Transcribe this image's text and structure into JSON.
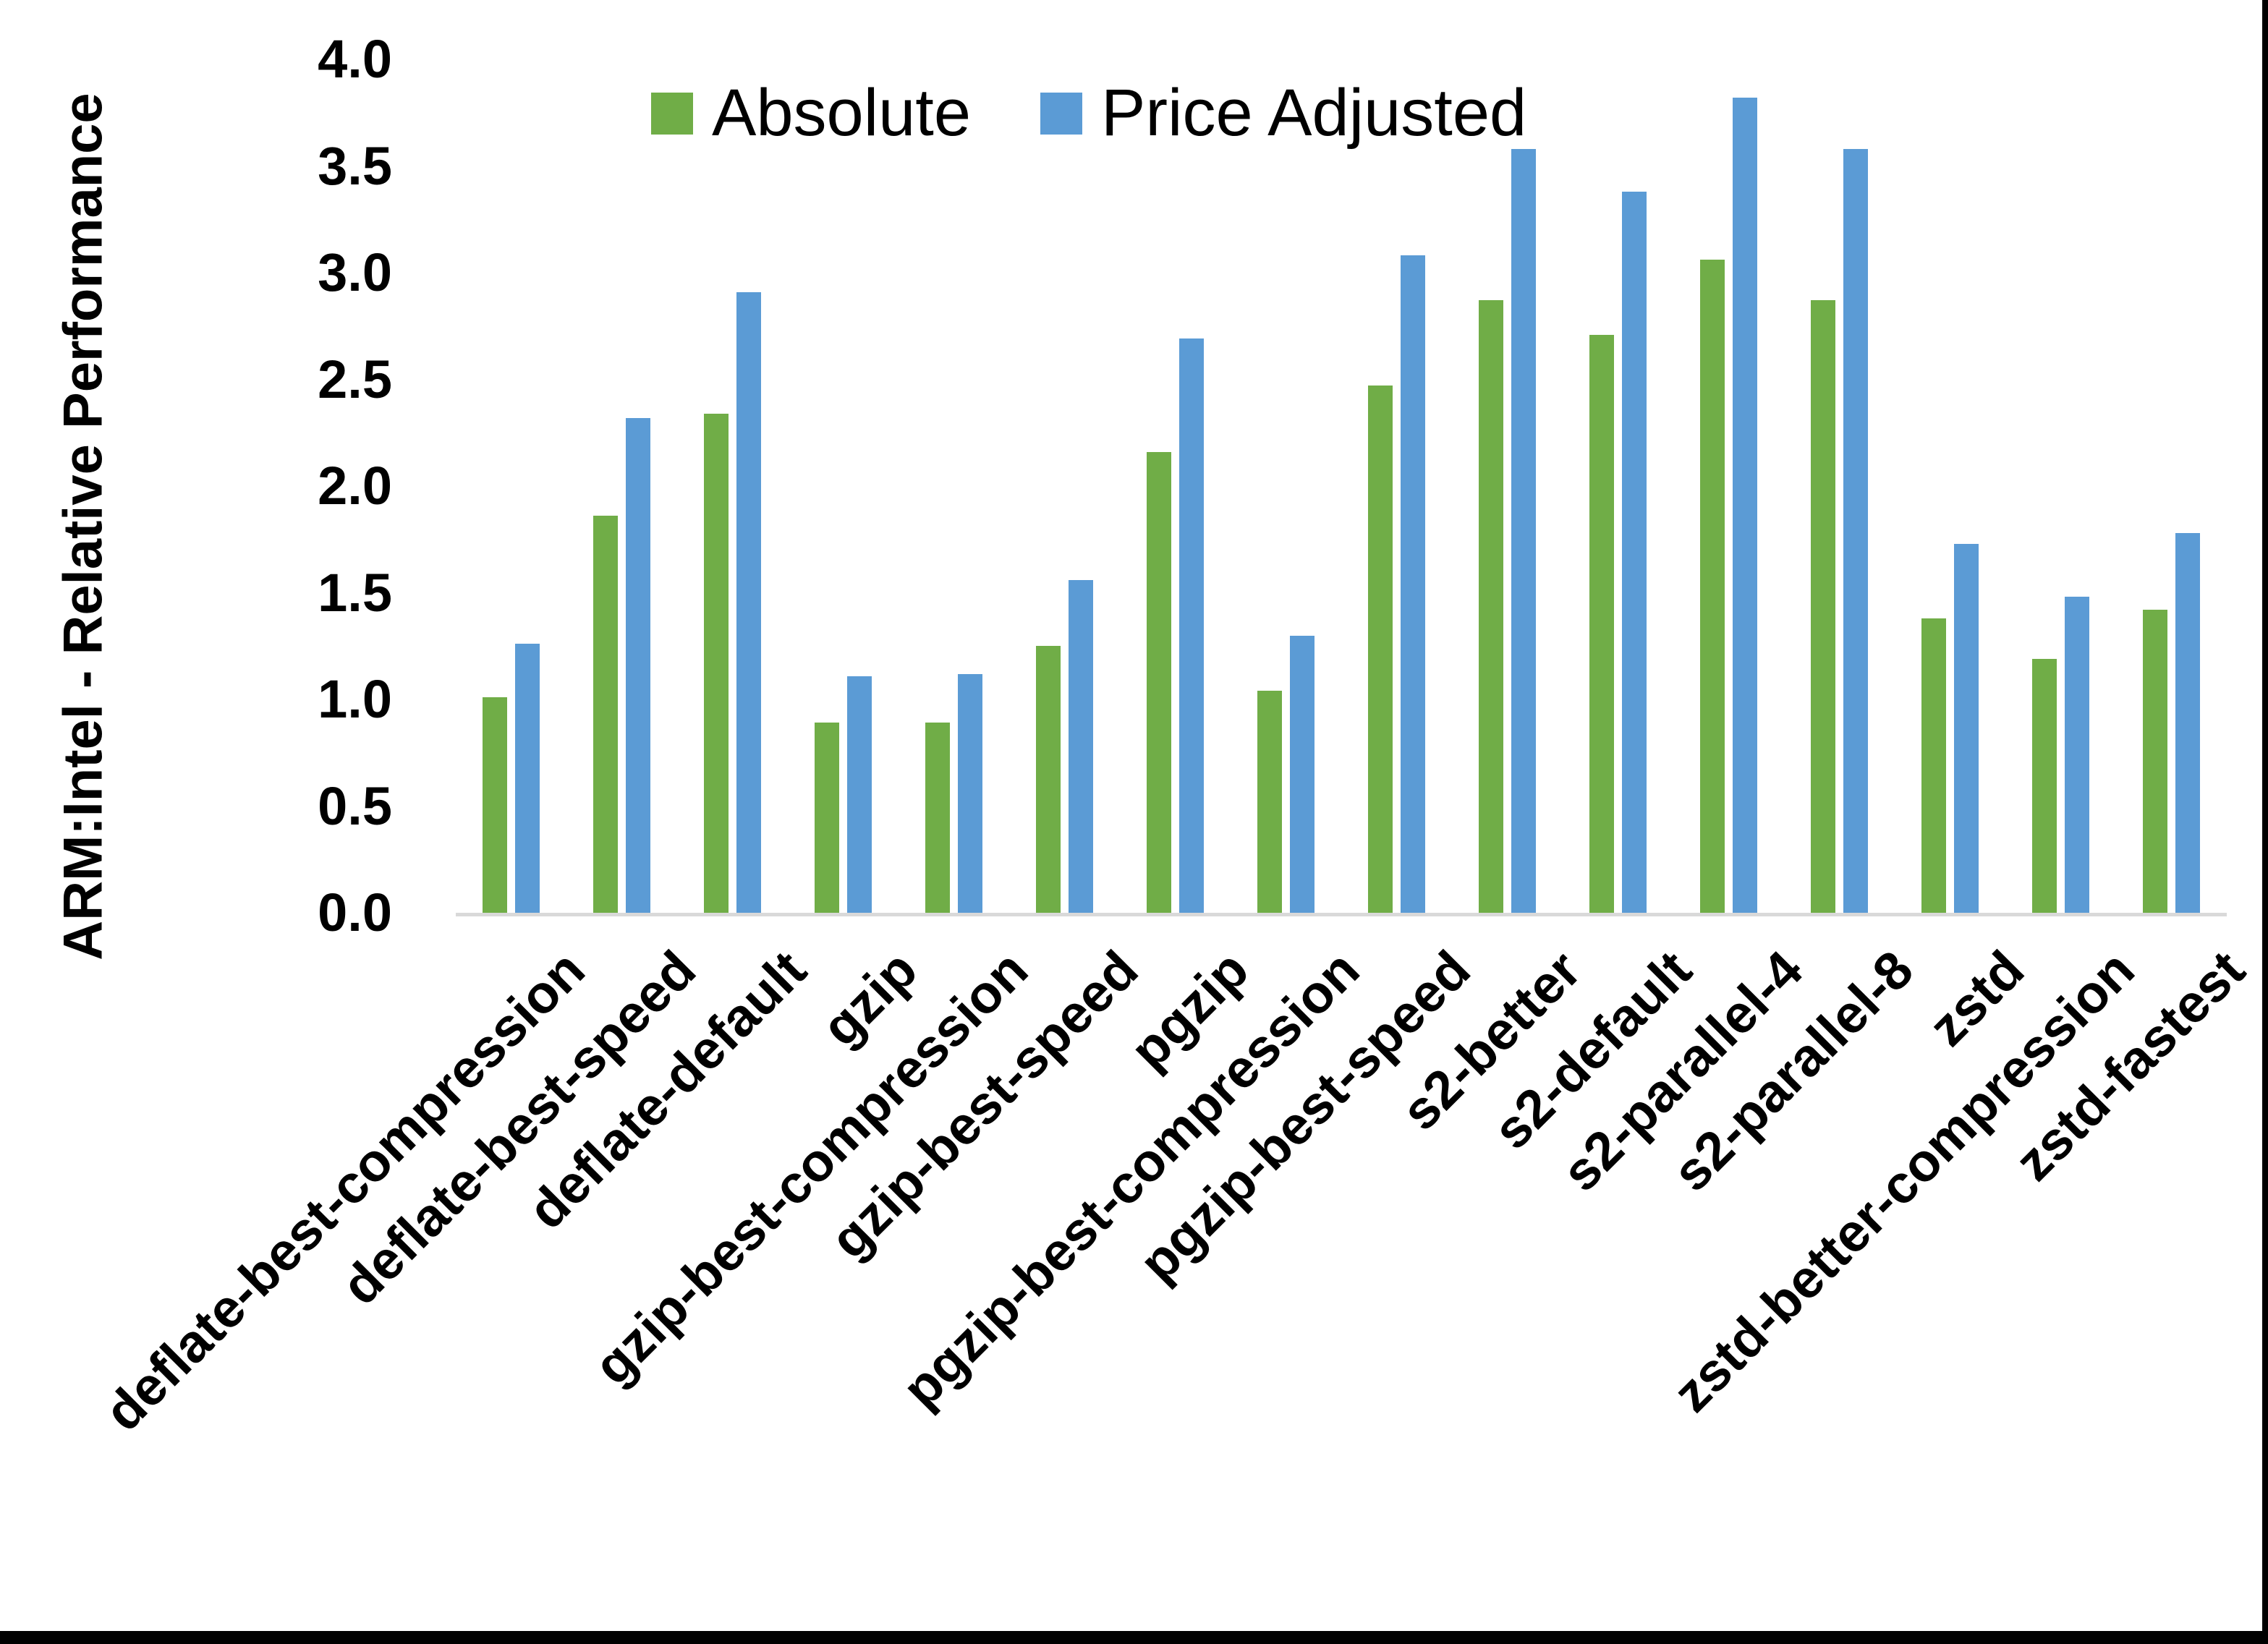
{
  "chart_data": {
    "type": "bar",
    "title": "",
    "xlabel": "",
    "ylabel": "ARM:Intel - Relative Performance",
    "ylim": [
      0,
      4.0
    ],
    "yticks": [
      "0.0",
      "0.5",
      "1.0",
      "1.5",
      "2.0",
      "2.5",
      "3.0",
      "3.5",
      "4.0"
    ],
    "grid": false,
    "legend_position": "top-center",
    "axis_line_color": "#D9D9D9",
    "categories": [
      "deflate-best-compression",
      "deflate-best-speed",
      "deflate-default",
      "gzip",
      "gzip-best-compression",
      "gzip-best-speed",
      "pgzip",
      "pgzip-best-compression",
      "pgzip-best-speed",
      "s2-better",
      "s2-default",
      "s2-parallel-4",
      "s2-parallel-8",
      "zstd",
      "zstd-better-compression",
      "zstd-fastest"
    ],
    "series": [
      {
        "name": "Absolute",
        "color": "#70AD47",
        "values": [
          1.01,
          1.86,
          2.34,
          0.89,
          0.89,
          1.25,
          2.16,
          1.04,
          2.47,
          2.87,
          2.71,
          3.06,
          2.87,
          1.38,
          1.19,
          1.42
        ]
      },
      {
        "name": "Price Adjusted",
        "color": "#5B9BD5",
        "values": [
          1.26,
          2.32,
          2.91,
          1.11,
          1.12,
          1.56,
          2.69,
          1.3,
          3.08,
          3.58,
          3.38,
          3.82,
          3.58,
          1.73,
          1.48,
          1.78
        ]
      }
    ]
  }
}
